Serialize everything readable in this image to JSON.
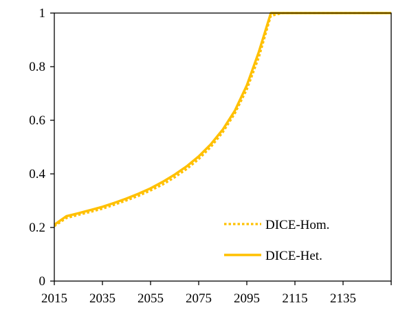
{
  "chart_data": {
    "type": "line",
    "title": "",
    "xlabel": "",
    "ylabel": "",
    "xlim": [
      2015,
      2155
    ],
    "ylim": [
      0,
      1
    ],
    "x_ticks": [
      2015,
      2035,
      2055,
      2075,
      2095,
      2115,
      2135
    ],
    "y_ticks": [
      0,
      0.2,
      0.4,
      0.6,
      0.8,
      1
    ],
    "y_tick_labels": [
      "0",
      "0.2",
      "0.4",
      "0.6",
      "0.8",
      "1"
    ],
    "grid": false,
    "legend_position": "bottom-right",
    "series": [
      {
        "name": "DICE-Hom.",
        "color": "#FFC000",
        "style": "dotted",
        "x": [
          2015,
          2020,
          2025,
          2030,
          2035,
          2040,
          2045,
          2050,
          2055,
          2060,
          2065,
          2070,
          2075,
          2080,
          2085,
          2090,
          2095,
          2100,
          2105,
          2110,
          2115,
          2120,
          2125,
          2130,
          2135,
          2140,
          2145,
          2150,
          2155
        ],
        "values": [
          0.205,
          0.235,
          0.247,
          0.258,
          0.27,
          0.285,
          0.301,
          0.318,
          0.338,
          0.36,
          0.387,
          0.418,
          0.455,
          0.5,
          0.555,
          0.625,
          0.715,
          0.835,
          0.99,
          1,
          1,
          1,
          1,
          1,
          1,
          1,
          1,
          1,
          1
        ]
      },
      {
        "name": "DICE-Het.",
        "color": "#FFC000",
        "style": "solid",
        "x": [
          2015,
          2020,
          2025,
          2030,
          2035,
          2040,
          2045,
          2050,
          2055,
          2060,
          2065,
          2070,
          2075,
          2080,
          2085,
          2090,
          2095,
          2100,
          2105,
          2110,
          2115,
          2120,
          2125,
          2130,
          2135,
          2140,
          2145,
          2150,
          2155
        ],
        "values": [
          0.21,
          0.242,
          0.253,
          0.265,
          0.277,
          0.292,
          0.308,
          0.326,
          0.346,
          0.37,
          0.397,
          0.428,
          0.465,
          0.51,
          0.565,
          0.635,
          0.73,
          0.855,
          1,
          1,
          1,
          1,
          1,
          1,
          1,
          1,
          1,
          1,
          1
        ]
      }
    ]
  }
}
